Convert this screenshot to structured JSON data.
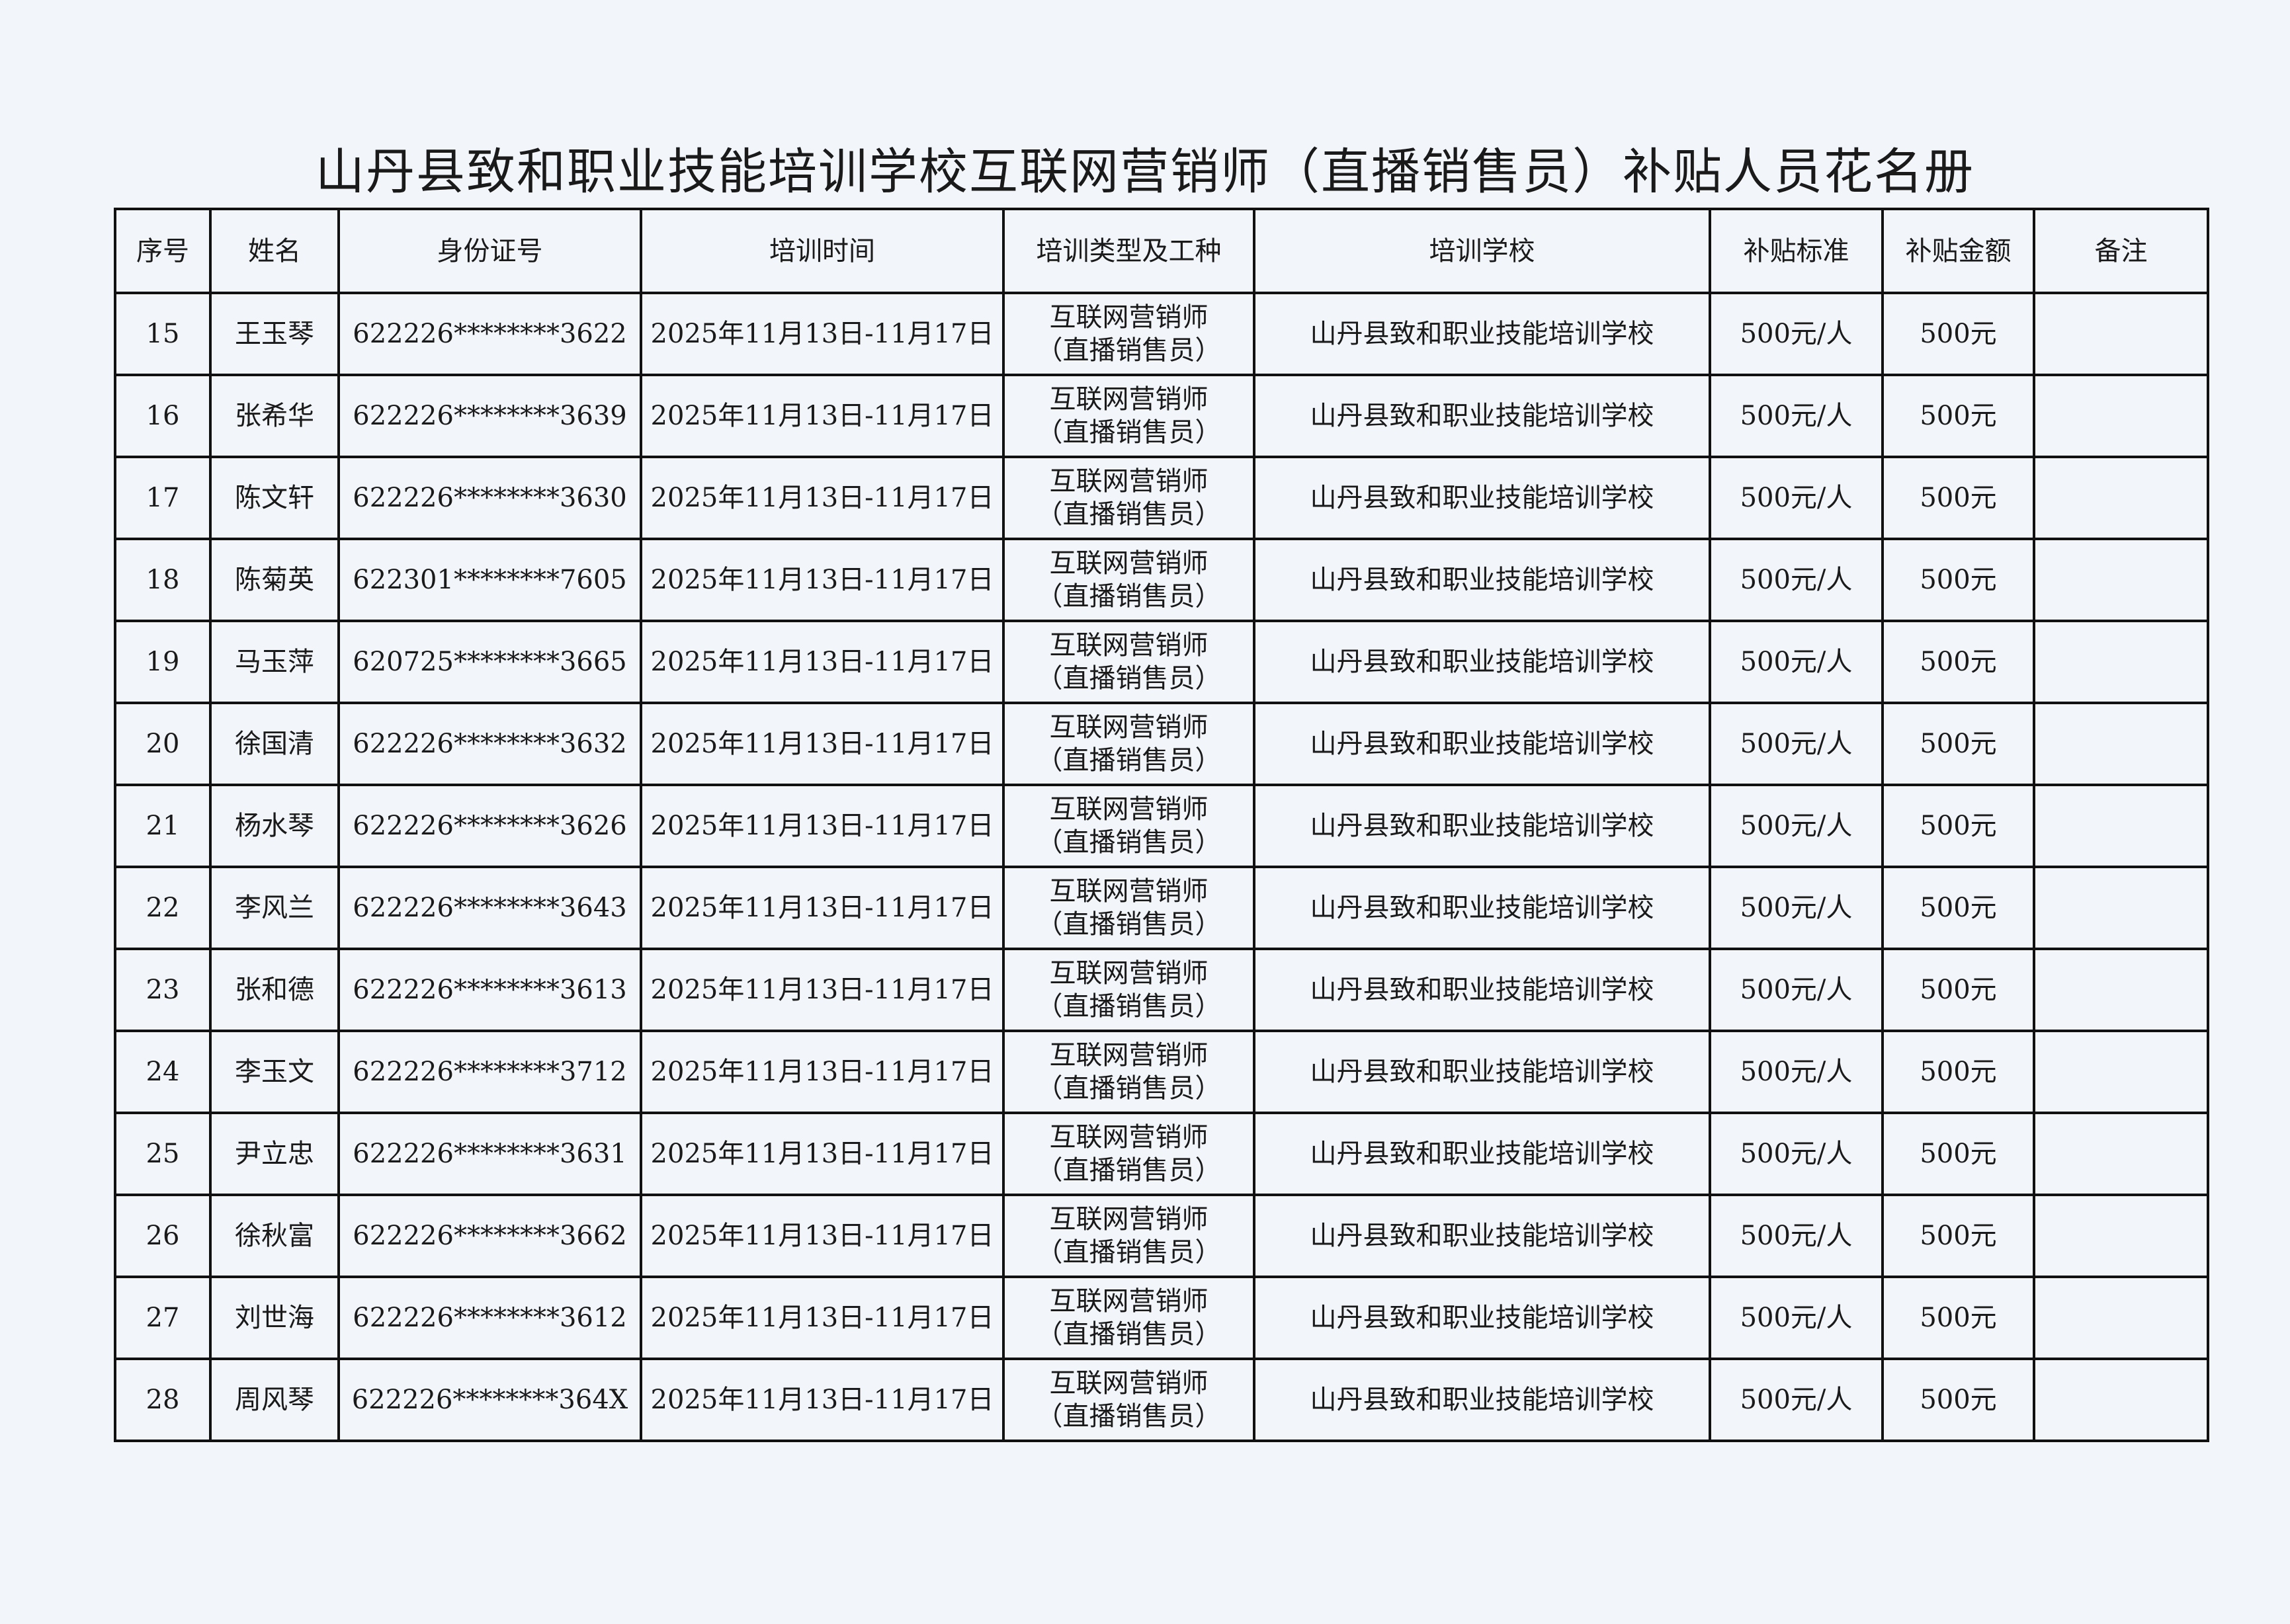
{
  "title": "山丹县致和职业技能培训学校互联网营销师（直播销售员）补贴人员花名册",
  "headers": [
    "序号",
    "姓名",
    "身份证号",
    "培训时间",
    "培训类型及工种",
    "培训学校",
    "补贴标准",
    "补贴金额",
    "备注"
  ],
  "rows": [
    {
      "no": "15",
      "name": "王玉琴",
      "id": "622226********3622"
    },
    {
      "no": "16",
      "name": "张希华",
      "id": "622226********3639"
    },
    {
      "no": "17",
      "name": "陈文轩",
      "id": "622226********3630"
    },
    {
      "no": "18",
      "name": "陈菊英",
      "id": "622301********7605"
    },
    {
      "no": "19",
      "name": "马玉萍",
      "id": "620725********3665"
    },
    {
      "no": "20",
      "name": "徐国清",
      "id": "622226********3632"
    },
    {
      "no": "21",
      "name": "杨水琴",
      "id": "622226********3626"
    },
    {
      "no": "22",
      "name": "李风兰",
      "id": "622226********3643"
    },
    {
      "no": "23",
      "name": "张和德",
      "id": "622226********3613"
    },
    {
      "no": "24",
      "name": "李玉文",
      "id": "622226********3712"
    },
    {
      "no": "25",
      "name": "尹立忠",
      "id": "622226********3631"
    },
    {
      "no": "26",
      "name": "徐秋富",
      "id": "622226********3662"
    },
    {
      "no": "27",
      "name": "刘世海",
      "id": "622226********3612"
    },
    {
      "no": "28",
      "name": "周风琴",
      "id": "622226********364X"
    }
  ],
  "common": {
    "period": "2025年11月13日-11月17日",
    "type_line1": "互联网营销师",
    "type_line2": "（直播销售员）",
    "school": "山丹县致和职业技能培训学校",
    "standard": "500元/人",
    "amount": "500元",
    "remark": ""
  }
}
